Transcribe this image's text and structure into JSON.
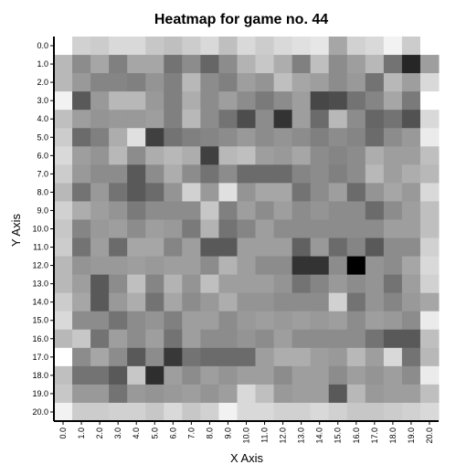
{
  "chart_data": {
    "type": "heatmap",
    "title": "Heatmap for game no. 44",
    "xlabel": "X Axis",
    "ylabel": "Y Axis",
    "x_ticks": [
      "0.0",
      "1.0",
      "2.0",
      "3.0",
      "4.0",
      "5.0",
      "6.0",
      "7.0",
      "8.0",
      "9.0",
      "10.0",
      "11.0",
      "12.0",
      "13.0",
      "14.0",
      "15.0",
      "16.0",
      "17.0",
      "18.0",
      "19.0",
      "20.0"
    ],
    "y_ticks": [
      "0.0",
      "1.0",
      "2.0",
      "3.0",
      "4.0",
      "5.0",
      "6.0",
      "7.0",
      "8.0",
      "9.0",
      "10.0",
      "11.0",
      "12.0",
      "13.0",
      "14.0",
      "15.0",
      "16.0",
      "17.0",
      "18.0",
      "19.0",
      "20.0"
    ],
    "colormap": "grayscale",
    "value_range": [
      0,
      1
    ],
    "values": [
      [
        1.0,
        0.82,
        0.8,
        0.85,
        0.85,
        0.78,
        0.75,
        0.8,
        0.85,
        0.75,
        0.85,
        0.8,
        0.85,
        0.88,
        0.9,
        0.65,
        0.82,
        0.85,
        0.95,
        0.8,
        1.0
      ],
      [
        0.72,
        0.55,
        0.65,
        0.5,
        0.65,
        0.65,
        0.45,
        0.55,
        0.4,
        0.55,
        0.7,
        0.78,
        0.68,
        0.5,
        0.75,
        0.55,
        0.62,
        0.72,
        0.45,
        0.15,
        0.62
      ],
      [
        0.72,
        0.6,
        0.52,
        0.52,
        0.5,
        0.58,
        0.5,
        0.72,
        0.55,
        0.5,
        0.62,
        0.58,
        0.75,
        0.65,
        0.62,
        0.55,
        0.6,
        0.45,
        0.72,
        0.62,
        0.85
      ],
      [
        0.95,
        0.35,
        0.6,
        0.72,
        0.72,
        0.6,
        0.5,
        0.68,
        0.55,
        0.62,
        0.55,
        0.48,
        0.55,
        0.62,
        0.28,
        0.3,
        0.45,
        0.52,
        0.65,
        0.48,
        1.0
      ],
      [
        0.75,
        0.62,
        0.58,
        0.6,
        0.6,
        0.62,
        0.5,
        0.72,
        0.55,
        0.45,
        0.3,
        0.55,
        0.2,
        0.62,
        0.42,
        0.72,
        0.55,
        0.4,
        0.45,
        0.32,
        0.85
      ],
      [
        0.8,
        0.42,
        0.5,
        0.68,
        0.88,
        0.25,
        0.45,
        0.5,
        0.52,
        0.55,
        0.6,
        0.55,
        0.58,
        0.55,
        0.5,
        0.55,
        0.52,
        0.42,
        0.55,
        0.6,
        0.92
      ],
      [
        0.85,
        0.62,
        0.58,
        0.72,
        0.55,
        0.68,
        0.72,
        0.68,
        0.25,
        0.72,
        0.75,
        0.62,
        0.6,
        0.65,
        0.55,
        0.52,
        0.55,
        0.68,
        0.62,
        0.62,
        0.75
      ],
      [
        0.8,
        0.6,
        0.55,
        0.55,
        0.35,
        0.55,
        0.68,
        0.55,
        0.45,
        0.55,
        0.42,
        0.42,
        0.42,
        0.52,
        0.55,
        0.5,
        0.55,
        0.72,
        0.62,
        0.68,
        0.72
      ],
      [
        0.72,
        0.45,
        0.6,
        0.45,
        0.35,
        0.42,
        0.58,
        0.82,
        0.6,
        0.88,
        0.58,
        0.65,
        0.65,
        0.45,
        0.55,
        0.62,
        0.42,
        0.58,
        0.65,
        0.6,
        0.85
      ],
      [
        0.82,
        0.68,
        0.62,
        0.58,
        0.48,
        0.55,
        0.55,
        0.55,
        0.78,
        0.5,
        0.62,
        0.55,
        0.62,
        0.55,
        0.58,
        0.55,
        0.55,
        0.42,
        0.55,
        0.62,
        0.75
      ],
      [
        0.78,
        0.52,
        0.6,
        0.62,
        0.55,
        0.62,
        0.6,
        0.48,
        0.7,
        0.45,
        0.52,
        0.62,
        0.55,
        0.55,
        0.55,
        0.55,
        0.55,
        0.55,
        0.62,
        0.62,
        0.75
      ],
      [
        0.8,
        0.45,
        0.62,
        0.42,
        0.65,
        0.65,
        0.52,
        0.62,
        0.35,
        0.35,
        0.62,
        0.62,
        0.62,
        0.38,
        0.6,
        0.42,
        0.52,
        0.35,
        0.55,
        0.55,
        0.82
      ],
      [
        0.72,
        0.58,
        0.6,
        0.6,
        0.62,
        0.6,
        0.62,
        0.62,
        0.55,
        0.7,
        0.62,
        0.55,
        0.55,
        0.2,
        0.2,
        0.55,
        0.0,
        0.58,
        0.55,
        0.65,
        0.85
      ],
      [
        0.72,
        0.62,
        0.35,
        0.55,
        0.75,
        0.52,
        0.7,
        0.58,
        0.75,
        0.62,
        0.62,
        0.62,
        0.58,
        0.45,
        0.52,
        0.6,
        0.55,
        0.58,
        0.45,
        0.62,
        0.82
      ],
      [
        0.8,
        0.65,
        0.35,
        0.6,
        0.68,
        0.45,
        0.65,
        0.55,
        0.6,
        0.68,
        0.58,
        0.58,
        0.55,
        0.55,
        0.55,
        0.82,
        0.45,
        0.58,
        0.52,
        0.6,
        0.65
      ],
      [
        0.85,
        0.55,
        0.55,
        0.45,
        0.55,
        0.58,
        0.5,
        0.62,
        0.62,
        0.55,
        0.6,
        0.62,
        0.6,
        0.62,
        0.6,
        0.62,
        0.55,
        0.62,
        0.6,
        0.55,
        0.92
      ],
      [
        0.72,
        0.78,
        0.45,
        0.62,
        0.55,
        0.62,
        0.45,
        0.62,
        0.55,
        0.55,
        0.58,
        0.55,
        0.62,
        0.55,
        0.55,
        0.55,
        0.55,
        0.45,
        0.35,
        0.35,
        0.75
      ],
      [
        1.0,
        0.55,
        0.65,
        0.55,
        0.35,
        0.55,
        0.22,
        0.45,
        0.42,
        0.42,
        0.42,
        0.62,
        0.68,
        0.68,
        0.62,
        0.6,
        0.72,
        0.62,
        0.85,
        0.45,
        0.72
      ],
      [
        0.75,
        0.45,
        0.45,
        0.35,
        0.78,
        0.18,
        0.62,
        0.55,
        0.62,
        0.58,
        0.62,
        0.62,
        0.55,
        0.62,
        0.62,
        0.55,
        0.62,
        0.58,
        0.62,
        0.55,
        0.92
      ],
      [
        0.78,
        0.6,
        0.6,
        0.45,
        0.6,
        0.58,
        0.6,
        0.62,
        0.58,
        0.62,
        0.85,
        0.75,
        0.6,
        0.62,
        0.62,
        0.35,
        0.72,
        0.6,
        0.62,
        0.62,
        0.75
      ],
      [
        0.95,
        0.8,
        0.8,
        0.82,
        0.82,
        0.78,
        0.85,
        0.78,
        0.82,
        0.95,
        0.85,
        0.85,
        0.82,
        0.82,
        0.85,
        0.82,
        0.78,
        0.78,
        0.8,
        0.82,
        0.85
      ]
    ]
  }
}
